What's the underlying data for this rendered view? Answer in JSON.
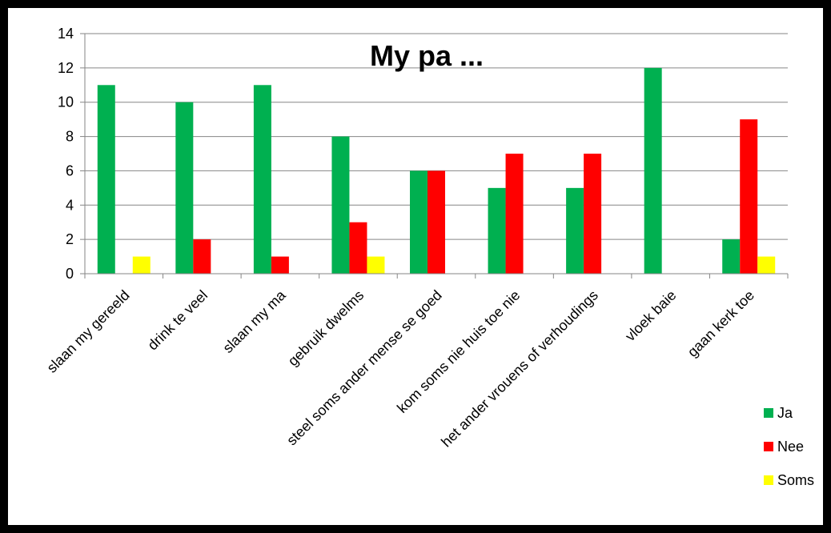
{
  "chart_data": {
    "type": "bar",
    "title": "My pa ...",
    "categories": [
      "slaan my gereeld",
      "drink te veel",
      "slaan my ma",
      "gebruik dwelms",
      "steel soms ander mense se goed",
      "kom soms nie huis toe nie",
      "het ander vrouens of verhoudings",
      "vloek baie",
      "gaan kerk toe"
    ],
    "series": [
      {
        "name": "Ja",
        "color": "#00b050",
        "values": [
          11,
          10,
          11,
          8,
          6,
          5,
          5,
          12,
          2
        ]
      },
      {
        "name": "Nee",
        "color": "#ff0000",
        "values": [
          0,
          2,
          1,
          3,
          6,
          7,
          7,
          0,
          9
        ]
      },
      {
        "name": "Soms",
        "color": "#ffff00",
        "values": [
          1,
          0,
          0,
          1,
          0,
          0,
          0,
          0,
          1
        ]
      }
    ],
    "ylim": [
      0,
      14
    ],
    "yticks": [
      0,
      2,
      4,
      6,
      8,
      10,
      12,
      14
    ],
    "grid": true,
    "legend": "bottom-right"
  }
}
